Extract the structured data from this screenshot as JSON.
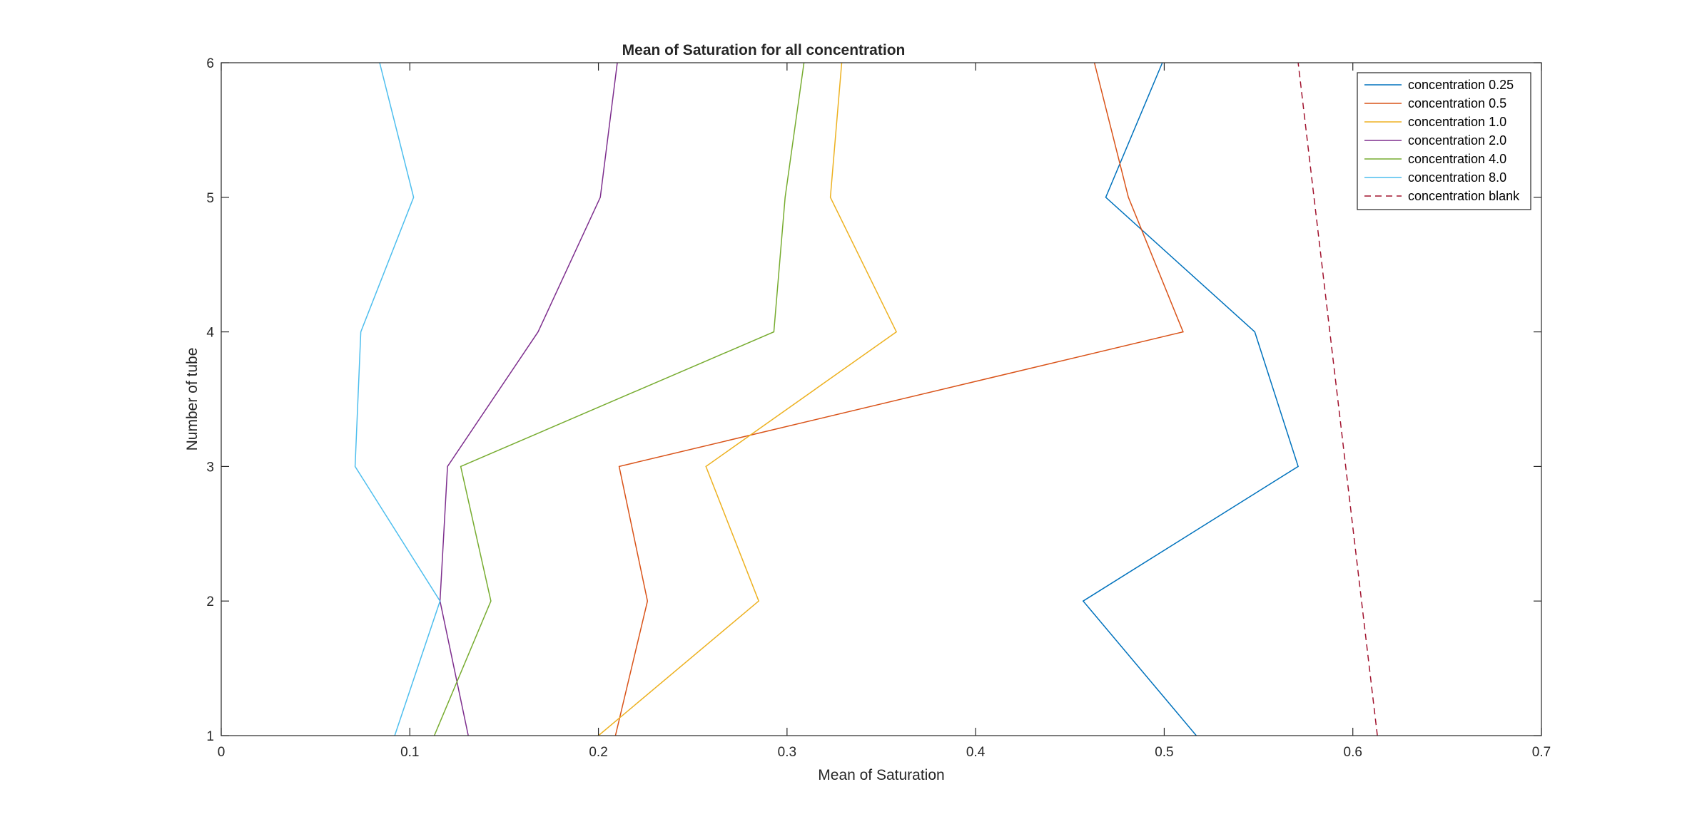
{
  "chart_data": {
    "type": "line",
    "title": "Mean of Saturation for all concentration",
    "xlabel": "Mean of Saturation",
    "ylabel": "Number of tube",
    "xlim": [
      0,
      0.7
    ],
    "ylim": [
      1,
      6
    ],
    "xticks": [
      0,
      0.1,
      0.2,
      0.3,
      0.4,
      0.5,
      0.6,
      0.7
    ],
    "xtick_labels": [
      "0",
      "0.1",
      "0.2",
      "0.3",
      "0.4",
      "0.5",
      "0.6",
      "0.7"
    ],
    "yticks": [
      1,
      2,
      3,
      4,
      5,
      6
    ],
    "ytick_labels": [
      "1",
      "2",
      "3",
      "4",
      "5",
      "6"
    ],
    "grid": false,
    "legend_position": "top-right",
    "series": [
      {
        "name": "concentration 0.25",
        "color": "#0072BD",
        "dash": false,
        "x": [
          0.517,
          0.457,
          0.571,
          0.548,
          0.469,
          0.499
        ],
        "y": [
          1,
          2,
          3,
          4,
          5,
          6
        ]
      },
      {
        "name": "concentration 0.5",
        "color": "#D95319",
        "dash": false,
        "x": [
          0.209,
          0.226,
          0.211,
          0.51,
          0.481,
          0.463
        ],
        "y": [
          1,
          2,
          3,
          4,
          5,
          6
        ]
      },
      {
        "name": "concentration 1.0",
        "color": "#EDB120",
        "dash": false,
        "x": [
          0.2,
          0.285,
          0.257,
          0.358,
          0.323,
          0.329
        ],
        "y": [
          1,
          2,
          3,
          4,
          5,
          6
        ]
      },
      {
        "name": "concentration 2.0",
        "color": "#7E2F8E",
        "dash": false,
        "x": [
          0.131,
          0.116,
          0.12,
          0.168,
          0.201,
          0.21
        ],
        "y": [
          1,
          2,
          3,
          4,
          5,
          6
        ]
      },
      {
        "name": "concentration 4.0",
        "color": "#77AC30",
        "dash": false,
        "x": [
          0.113,
          0.143,
          0.127,
          0.293,
          0.299,
          0.309
        ],
        "y": [
          1,
          2,
          3,
          4,
          5,
          6
        ]
      },
      {
        "name": "concentration 8.0",
        "color": "#4DBEEE",
        "dash": false,
        "x": [
          0.092,
          0.116,
          0.071,
          0.074,
          0.102,
          0.084
        ],
        "y": [
          1,
          2,
          3,
          4,
          5,
          6
        ]
      },
      {
        "name": "concentration blank",
        "color": "#A2142F",
        "dash": true,
        "x": [
          0.613,
          0.571
        ],
        "y": [
          1,
          6
        ]
      }
    ]
  }
}
